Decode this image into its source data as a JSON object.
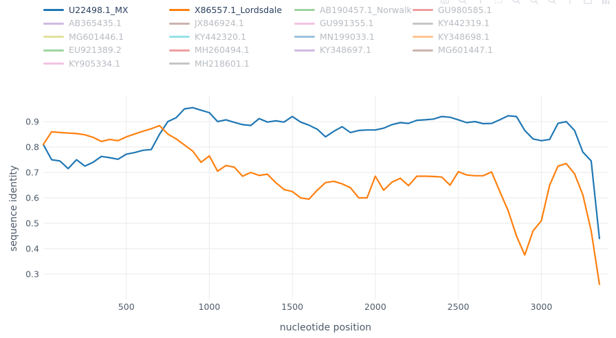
{
  "modebar": {
    "buttons": [
      "camera-icon",
      "zoom-icon",
      "pan-icon",
      "box-select-icon",
      "lasso-select-icon",
      "zoom-in-icon",
      "zoom-out-icon",
      "autoscale-icon",
      "reset-axes-icon",
      "plotly-logo-icon"
    ]
  },
  "chart_data": {
    "type": "line",
    "title": "",
    "xlabel": "nucleotide position",
    "ylabel": "sequence identity",
    "xlim": [
      0,
      3400
    ],
    "ylim": [
      0.2,
      1.0
    ],
    "xticks": [
      500,
      1000,
      1500,
      2000,
      2500,
      3000
    ],
    "yticks": [
      0.3,
      0.4,
      0.5,
      0.6,
      0.7,
      0.8,
      0.9
    ],
    "grid": true,
    "legend_position": "top-horizontal-4col",
    "x": [
      0,
      50,
      100,
      150,
      200,
      250,
      300,
      350,
      400,
      450,
      500,
      550,
      600,
      650,
      700,
      750,
      800,
      850,
      900,
      950,
      1000,
      1050,
      1100,
      1150,
      1200,
      1250,
      1300,
      1350,
      1400,
      1450,
      1500,
      1550,
      1600,
      1650,
      1700,
      1750,
      1800,
      1850,
      1900,
      1950,
      2000,
      2050,
      2100,
      2150,
      2200,
      2250,
      2300,
      2350,
      2400,
      2450,
      2500,
      2550,
      2600,
      2650,
      2700,
      2750,
      2800,
      2850,
      2900,
      2950,
      3000,
      3050,
      3100,
      3150,
      3200,
      3250,
      3300,
      3350
    ],
    "series": [
      {
        "name": "U22498.1_MX",
        "color": "#1f77b4",
        "visible": true,
        "y": [
          0.81,
          0.75,
          0.745,
          0.715,
          0.75,
          0.725,
          0.74,
          0.763,
          0.758,
          0.752,
          0.772,
          0.778,
          0.787,
          0.79,
          0.85,
          0.9,
          0.915,
          0.95,
          0.955,
          0.945,
          0.935,
          0.9,
          0.907,
          0.897,
          0.888,
          0.885,
          0.912,
          0.898,
          0.903,
          0.898,
          0.92,
          0.898,
          0.886,
          0.87,
          0.84,
          0.862,
          0.88,
          0.857,
          0.865,
          0.867,
          0.867,
          0.874,
          0.888,
          0.896,
          0.893,
          0.905,
          0.907,
          0.91,
          0.92,
          0.917,
          0.907,
          0.896,
          0.9,
          0.892,
          0.893,
          0.907,
          0.923,
          0.92,
          0.865,
          0.832,
          0.825,
          0.83,
          0.893,
          0.9,
          0.865,
          0.78,
          0.745,
          0.44
        ]
      },
      {
        "name": "X86557.1_Lordsdale",
        "color": "#ff7f0e",
        "visible": true,
        "y": [
          0.81,
          0.86,
          0.857,
          0.855,
          0.853,
          0.848,
          0.838,
          0.822,
          0.83,
          0.825,
          0.84,
          0.851,
          0.862,
          0.872,
          0.884,
          0.851,
          0.832,
          0.808,
          0.784,
          0.74,
          0.765,
          0.705,
          0.727,
          0.721,
          0.685,
          0.7,
          0.688,
          0.693,
          0.66,
          0.633,
          0.625,
          0.6,
          0.595,
          0.63,
          0.66,
          0.665,
          0.655,
          0.64,
          0.6,
          0.6,
          0.685,
          0.63,
          0.662,
          0.677,
          0.648,
          0.685,
          0.685,
          0.684,
          0.682,
          0.65,
          0.703,
          0.69,
          0.687,
          0.687,
          0.702,
          0.625,
          0.55,
          0.45,
          0.375,
          0.47,
          0.51,
          0.65,
          0.725,
          0.735,
          0.695,
          0.612,
          0.47,
          0.26
        ]
      },
      {
        "name": "AB190457.1_Norwalk",
        "color": "#2ca02c",
        "visible": false
      },
      {
        "name": "GU980585.1",
        "color": "#d62728",
        "visible": false
      },
      {
        "name": "AB365435.1",
        "color": "#9467bd",
        "visible": false
      },
      {
        "name": "JX846924.1",
        "color": "#8c564b",
        "visible": false
      },
      {
        "name": "GU991355.1",
        "color": "#e377c2",
        "visible": false
      },
      {
        "name": "KY442319.1",
        "color": "#7f7f7f",
        "visible": false
      },
      {
        "name": "MG601446.1",
        "color": "#bcbd22",
        "visible": false
      },
      {
        "name": "KY442320.1",
        "color": "#17becf",
        "visible": false
      },
      {
        "name": "MN199033.1",
        "color": "#1f77b4",
        "visible": false
      },
      {
        "name": "KY348698.1",
        "color": "#ff7f0e",
        "visible": false
      },
      {
        "name": "EU921389.2",
        "color": "#2ca02c",
        "visible": false
      },
      {
        "name": "MH260494.1",
        "color": "#d62728",
        "visible": false
      },
      {
        "name": "KY348697.1",
        "color": "#9467bd",
        "visible": false
      },
      {
        "name": "MG601447.1",
        "color": "#8c564b",
        "visible": false
      },
      {
        "name": "KY905334.1",
        "color": "#e377c2",
        "visible": false
      },
      {
        "name": "MH218601.1",
        "color": "#7f7f7f",
        "visible": false
      }
    ],
    "colors": {
      "grid": "#e8eaed",
      "tick_text": "#4d5b6a",
      "legend_active_text": "#2a3f5f",
      "legend_dim_text": "#b8bcc2",
      "modebar_icon": "#c7cbd4"
    }
  }
}
